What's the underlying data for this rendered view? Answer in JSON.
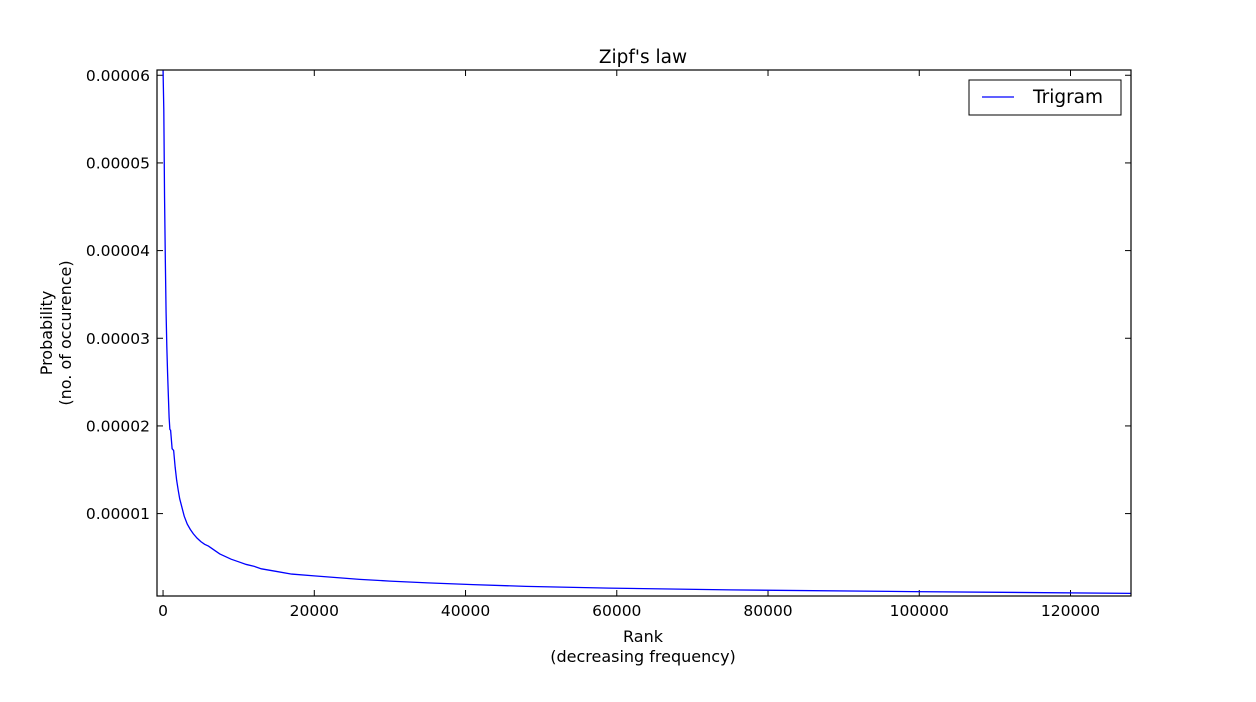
{
  "chart_data": {
    "type": "line",
    "title": "Zipf's law",
    "xlabel": [
      "Rank",
      "(decreasing frequency)"
    ],
    "ylabel": [
      "Probability",
      "(no. of occurence)"
    ],
    "xlim": [
      -800,
      128000
    ],
    "ylim": [
      6e-07,
      6.06e-05
    ],
    "xticks": [
      0,
      20000,
      40000,
      60000,
      80000,
      100000,
      120000
    ],
    "xtick_labels": [
      "0",
      "20000",
      "40000",
      "60000",
      "80000",
      "100000",
      "120000"
    ],
    "yticks": [
      1e-05,
      2e-05,
      3e-05,
      4e-05,
      5e-05,
      6e-05
    ],
    "ytick_labels": [
      "0.00001",
      "0.00002",
      "0.00003",
      "0.00004",
      "0.00005",
      "0.00006"
    ],
    "grid": false,
    "legend_position": "top-right",
    "series": [
      {
        "name": "Trigram",
        "color": "#0000ff",
        "x": [
          0,
          100,
          200,
          300,
          400,
          500,
          600,
          700,
          800,
          900,
          1000,
          1200,
          1400,
          1600,
          1800,
          2000,
          2200,
          2500,
          2800,
          3200,
          3600,
          4000,
          4500,
          5000,
          5500,
          6000,
          6500,
          7000,
          7500,
          8000,
          9000,
          10000,
          11000,
          12000,
          13000,
          15000,
          17000,
          20000,
          23000,
          26000,
          30000,
          35000,
          41000,
          48000,
          59000,
          75000,
          99000,
          128000
        ],
        "y": [
          6.06e-05,
          5.6e-05,
          4.6e-05,
          3.9e-05,
          3.3e-05,
          2.9e-05,
          2.6e-05,
          2.35e-05,
          2.1e-05,
          1.96e-05,
          1.95e-05,
          1.74e-05,
          1.72e-05,
          1.53e-05,
          1.38e-05,
          1.27e-05,
          1.17e-05,
          1.07e-05,
          9.7e-06,
          8.8e-06,
          8.2e-06,
          7.7e-06,
          7.2e-06,
          6.8e-06,
          6.5e-06,
          6.3e-06,
          6e-06,
          5.7e-06,
          5.4e-06,
          5.2e-06,
          4.8e-06,
          4.5e-06,
          4.2e-06,
          4e-06,
          3.7e-06,
          3.4e-06,
          3.1e-06,
          2.9e-06,
          2.7e-06,
          2.5e-06,
          2.3e-06,
          2.1e-06,
          1.9e-06,
          1.7e-06,
          1.5e-06,
          1.3e-06,
          1.1e-06,
          9e-07
        ]
      }
    ]
  }
}
